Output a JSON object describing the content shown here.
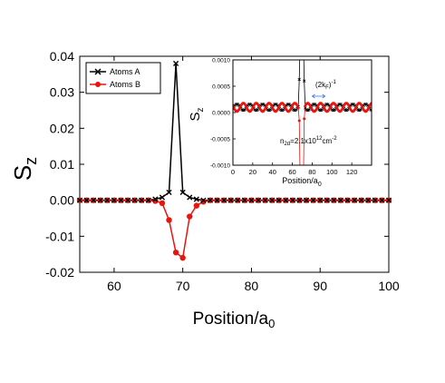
{
  "chart_data": [
    {
      "type": "line",
      "xlabel": "Position/a",
      "xlabel_sub": "0",
      "ylabel": "S",
      "ylabel_sub": "z",
      "xlim": [
        55,
        100
      ],
      "ylim": [
        -0.02,
        0.04
      ],
      "x_ticks": [
        60,
        70,
        80,
        90,
        100
      ],
      "x_tick_labels": [
        "60",
        "70",
        "80",
        "90",
        "100"
      ],
      "y_ticks": [
        -0.02,
        -0.01,
        0.0,
        0.01,
        0.02,
        0.03,
        0.04
      ],
      "y_tick_labels": [
        "-0.02",
        "-0.01",
        "0.00",
        "0.01",
        "0.02",
        "0.03",
        "0.04"
      ],
      "legend": "top-left",
      "series": [
        {
          "name": "Atoms A",
          "color": "#000000",
          "marker": "x",
          "x": [
            55,
            56,
            57,
            58,
            59,
            60,
            61,
            62,
            63,
            64,
            65,
            66,
            67,
            68,
            69,
            70,
            71,
            72,
            73,
            74,
            75,
            76,
            77,
            78,
            79,
            80,
            81,
            82,
            83,
            84,
            85,
            86,
            87,
            88,
            89,
            90,
            91,
            92,
            93,
            94,
            95,
            96,
            97,
            98,
            99,
            100
          ],
          "y": [
            0,
            0,
            0,
            0,
            0,
            0,
            0,
            0,
            0,
            0,
            0,
            0.0003,
            0.0008,
            0.0022,
            0.038,
            0.0022,
            0.0008,
            0.0003,
            0,
            0,
            0,
            0,
            0,
            0,
            0,
            0,
            0,
            0,
            0,
            0,
            0,
            0,
            0,
            0,
            0,
            0,
            0,
            0,
            0,
            0,
            0,
            0,
            0,
            0,
            0,
            0
          ]
        },
        {
          "name": "Atoms B",
          "color": "#e8140e",
          "marker": "circle",
          "x": [
            55,
            56,
            57,
            58,
            59,
            60,
            61,
            62,
            63,
            64,
            65,
            66,
            67,
            68,
            69,
            70,
            71,
            72,
            73,
            74,
            75,
            76,
            77,
            78,
            79,
            80,
            81,
            82,
            83,
            84,
            85,
            86,
            87,
            88,
            89,
            90,
            91,
            92,
            93,
            94,
            95,
            96,
            97,
            98,
            99,
            100
          ],
          "y": [
            0,
            0,
            0,
            0,
            0,
            0,
            0,
            0,
            0,
            0,
            0,
            -0.0002,
            -0.0008,
            -0.0055,
            -0.0145,
            -0.016,
            -0.0045,
            -0.0015,
            -0.0004,
            0,
            0,
            0,
            0,
            0,
            0,
            0,
            0,
            0,
            0,
            0,
            0,
            0,
            0,
            0,
            0,
            0,
            0,
            0,
            0,
            0,
            0,
            0,
            0,
            0,
            0,
            0
          ]
        }
      ]
    },
    {
      "type": "line",
      "role": "inset",
      "xlabel": "Position/a",
      "xlabel_sub": "0",
      "ylabel": "S",
      "ylabel_sub": "z",
      "xlim": [
        0,
        140
      ],
      "ylim": [
        -0.001,
        0.001
      ],
      "x_ticks": [
        0,
        20,
        40,
        60,
        80,
        100,
        120
      ],
      "x_tick_labels": [
        "0",
        "20",
        "40",
        "60",
        "80",
        "100",
        "120"
      ],
      "y_ticks": [
        -0.001,
        -0.0005,
        0.0,
        0.0005,
        0.001
      ],
      "y_tick_labels": [
        "-0.0010",
        "-0.0005",
        "0.0000",
        "0.0005",
        "0.0010"
      ],
      "annotations": {
        "k_label": "(2k",
        "k_label_sub": "F",
        "k_label_close": ")",
        "k_label_sup": "-1",
        "density_label": "n",
        "density_sub": "2d",
        "density_mid": "=2.1x10",
        "density_sup1": "12",
        "density_unit": "cm",
        "density_sup2": "-2",
        "period_arrow": [
          80,
          93
        ]
      },
      "oscillation": {
        "offset": 0.0001,
        "amplitude_a": 6e-05,
        "amplitude_b": 8e-05,
        "period": 13,
        "phase": 69
      },
      "series": [
        {
          "name": "Atoms A",
          "color": "#000000",
          "marker": "x",
          "peak_x": 69.5,
          "peak_y": 0.038
        },
        {
          "name": "Atoms B",
          "color": "#e8140e",
          "marker": "circle",
          "peak_x": 69.5,
          "peak_y": -0.016
        }
      ]
    }
  ]
}
